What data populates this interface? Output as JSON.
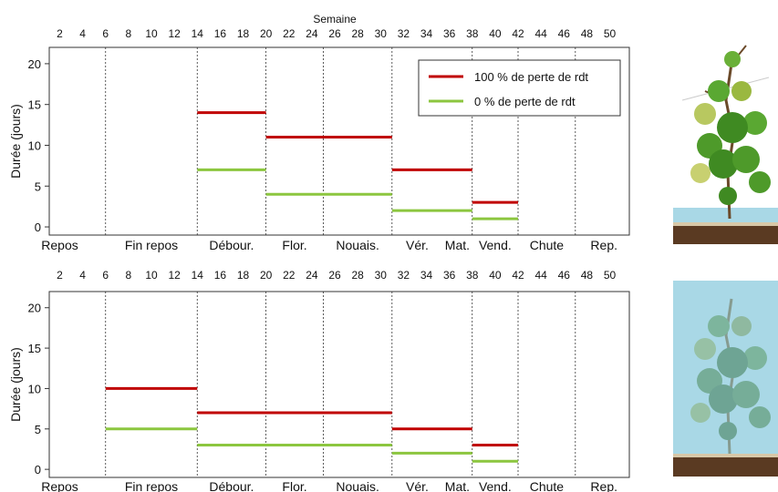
{
  "chart_data": [
    {
      "type": "line",
      "title": "Semaine",
      "xlabel": "",
      "ylabel": "Durée (jours)",
      "week_ticks": [
        2,
        4,
        6,
        8,
        10,
        12,
        14,
        16,
        18,
        20,
        22,
        24,
        26,
        28,
        30,
        32,
        34,
        36,
        38,
        40,
        42,
        44,
        46,
        48,
        50
      ],
      "xlim": [
        0,
        52
      ],
      "ylim": [
        -1,
        22
      ],
      "yticks": [
        0,
        5,
        10,
        15,
        20
      ],
      "stage_boundaries": [
        6,
        14,
        20,
        25,
        31,
        38,
        42,
        47
      ],
      "stages": [
        {
          "label": "Repos",
          "center": 2
        },
        {
          "label": "Fin repos",
          "center": 10
        },
        {
          "label": "Débour.",
          "center": 17
        },
        {
          "label": "Flor.",
          "center": 22.5
        },
        {
          "label": "Nouais.",
          "center": 28
        },
        {
          "label": "Vér.",
          "center": 33.2
        },
        {
          "label": "Mat.",
          "center": 36.7
        },
        {
          "label": "Vend.",
          "center": 40
        },
        {
          "label": "Chute",
          "center": 44.5
        },
        {
          "label": "Rep.",
          "center": 49.5
        }
      ],
      "legend_position": "top-right",
      "series": [
        {
          "name": "100 % de perte de rdt",
          "color": "#c00000",
          "segments": [
            {
              "x_start": 14,
              "x_end": 20,
              "y": 14
            },
            {
              "x_start": 20,
              "x_end": 31,
              "y": 11
            },
            {
              "x_start": 31,
              "x_end": 38,
              "y": 7
            },
            {
              "x_start": 38,
              "x_end": 42,
              "y": 3
            }
          ]
        },
        {
          "name": "0 % de perte de rdt",
          "color": "#8cc63f",
          "segments": [
            {
              "x_start": 14,
              "x_end": 20,
              "y": 7
            },
            {
              "x_start": 20,
              "x_end": 31,
              "y": 4
            },
            {
              "x_start": 31,
              "x_end": 38,
              "y": 2
            },
            {
              "x_start": 38,
              "x_end": 42,
              "y": 1
            }
          ]
        }
      ]
    },
    {
      "type": "line",
      "title": "",
      "xlabel": "",
      "ylabel": "Durée (jours)",
      "week_ticks": [
        2,
        4,
        6,
        8,
        10,
        12,
        14,
        16,
        18,
        20,
        22,
        24,
        26,
        28,
        30,
        32,
        34,
        36,
        38,
        40,
        42,
        44,
        46,
        48,
        50
      ],
      "xlim": [
        0,
        52
      ],
      "ylim": [
        -1,
        22
      ],
      "yticks": [
        0,
        5,
        10,
        15,
        20
      ],
      "stage_boundaries": [
        6,
        14,
        20,
        25,
        31,
        38,
        42,
        47
      ],
      "stages": [
        {
          "label": "Repos",
          "center": 2
        },
        {
          "label": "Fin repos",
          "center": 10
        },
        {
          "label": "Débour.",
          "center": 17
        },
        {
          "label": "Flor.",
          "center": 22.5
        },
        {
          "label": "Nouais.",
          "center": 28
        },
        {
          "label": "Vér.",
          "center": 33.2
        },
        {
          "label": "Mat.",
          "center": 36.7
        },
        {
          "label": "Vend.",
          "center": 40
        },
        {
          "label": "Chute",
          "center": 44.5
        },
        {
          "label": "Rep.",
          "center": 49.5
        }
      ],
      "legend_position": "none",
      "series": [
        {
          "color": "#c00000",
          "segments": [
            {
              "x_start": 6,
              "x_end": 14,
              "y": 10
            },
            {
              "x_start": 14,
              "x_end": 31,
              "y": 7
            },
            {
              "x_start": 31,
              "x_end": 38,
              "y": 5
            },
            {
              "x_start": 38,
              "x_end": 42,
              "y": 3
            }
          ]
        },
        {
          "color": "#8cc63f",
          "segments": [
            {
              "x_start": 6,
              "x_end": 14,
              "y": 5
            },
            {
              "x_start": 14,
              "x_end": 31,
              "y": 3
            },
            {
              "x_start": 31,
              "x_end": 38,
              "y": 2
            },
            {
              "x_start": 38,
              "x_end": 42,
              "y": 1
            }
          ]
        }
      ]
    }
  ],
  "illustrations": [
    {
      "icon": "grapevine-leafy-icon",
      "colors": {
        "sky": "#a9d8e6",
        "soil": "#5a3a22",
        "leaf": "#4e9a2a"
      }
    },
    {
      "icon": "grapevine-faded-icon",
      "colors": {
        "sky": "#a9d8e6",
        "soil": "#5a3a22",
        "leaf": "#7aa88a"
      }
    }
  ]
}
